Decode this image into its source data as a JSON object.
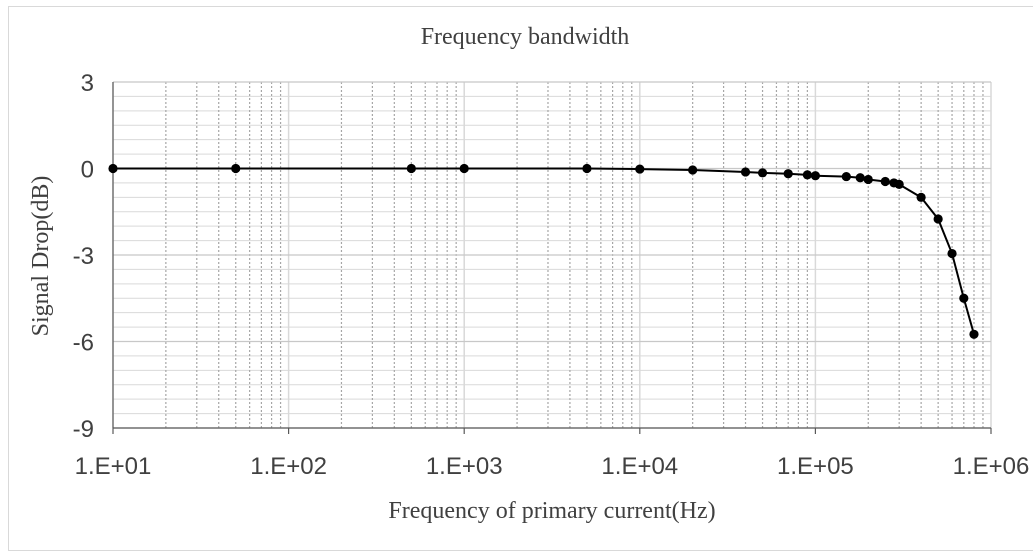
{
  "chart_data": {
    "type": "line",
    "title": "Frequency bandwidth",
    "xlabel": "Frequency of primary current(Hz)",
    "ylabel": "Signal Drop(dB)",
    "xscale": "log",
    "xlim": [
      10,
      1000000
    ],
    "ylim": [
      -9,
      3
    ],
    "x_ticks": [
      10,
      100,
      1000,
      10000,
      100000,
      1000000
    ],
    "x_tick_labels": [
      "1.E+01",
      "1.E+02",
      "1.E+03",
      "1.E+04",
      "1.E+05",
      "1.E+06"
    ],
    "y_ticks": [
      3,
      0,
      -3,
      -6,
      -9
    ],
    "y_tick_labels": [
      "3",
      "0",
      "-3",
      "-6",
      "-9"
    ],
    "grid": true,
    "legend": "none",
    "series": [
      {
        "color": "#000000",
        "marker": "circle",
        "x": [
          10,
          50,
          500,
          1000,
          5000,
          10000,
          20000,
          40000,
          50000,
          70000,
          90000,
          100000,
          150000,
          180000,
          200000,
          250000,
          280000,
          300000,
          400000,
          500000,
          600000,
          700000,
          800000
        ],
        "y": [
          0,
          0,
          0,
          0,
          0,
          -0.02,
          -0.05,
          -0.12,
          -0.15,
          -0.18,
          -0.22,
          -0.25,
          -0.28,
          -0.32,
          -0.38,
          -0.45,
          -0.5,
          -0.55,
          -1.0,
          -1.75,
          -2.95,
          -4.5,
          -5.75
        ]
      }
    ]
  }
}
